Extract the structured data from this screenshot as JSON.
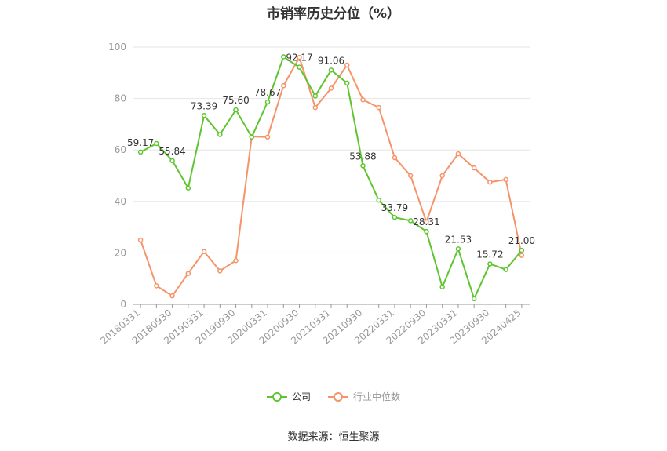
{
  "title": "市销率历史分位（%）",
  "source": "数据来源：恒生聚源",
  "colors": {
    "company": "#5ec52f",
    "industry": "#f59468",
    "grid": "#e6e6e6",
    "axis": "#999999"
  },
  "chart_data": {
    "type": "line",
    "title": "市销率历史分位（%）",
    "ylim": [
      0,
      100
    ],
    "yticks": [
      0,
      20,
      40,
      60,
      80,
      100
    ],
    "grid": true,
    "legend_position": "bottom",
    "x": [
      "20180331",
      "20180630",
      "20180930",
      "20181231",
      "20190331",
      "20190630",
      "20190930",
      "20191231",
      "20200331",
      "20200630",
      "20200930",
      "20201231",
      "20210331",
      "20210630",
      "20210930",
      "20211231",
      "20220331",
      "20220630",
      "20220930",
      "20221231",
      "20230331",
      "20230630",
      "20230930",
      "20231231",
      "20240425"
    ],
    "x_tick_labels": [
      "20180331",
      "20180930",
      "20190331",
      "20190930",
      "20200331",
      "20200930",
      "20210331",
      "20210930",
      "20220331",
      "20220930",
      "20230331",
      "20230930",
      "20240425"
    ],
    "series": [
      {
        "name": "公司",
        "color": "#5ec52f",
        "values": [
          59.17,
          62.5,
          55.84,
          45.2,
          73.39,
          66.0,
          75.6,
          65.0,
          78.67,
          96.2,
          92.17,
          81.0,
          91.06,
          86.0,
          53.88,
          40.5,
          33.79,
          32.5,
          28.31,
          6.8,
          21.53,
          2.2,
          15.72,
          13.5,
          21.0
        ]
      },
      {
        "name": "行业中位数",
        "color": "#f59468",
        "values": [
          25.0,
          7.2,
          3.3,
          12.0,
          20.5,
          13.0,
          17.0,
          65.2,
          65.0,
          85.0,
          96.0,
          76.5,
          84.0,
          93.0,
          79.5,
          76.5,
          57.0,
          50.0,
          32.0,
          50.0,
          58.5,
          53.0,
          47.5,
          48.5,
          19.0
        ]
      }
    ],
    "data_labels": [
      {
        "index": 0,
        "text": "59.17"
      },
      {
        "index": 2,
        "text": "55.84"
      },
      {
        "index": 4,
        "text": "73.39"
      },
      {
        "index": 6,
        "text": "75.60"
      },
      {
        "index": 8,
        "text": "78.67"
      },
      {
        "index": 10,
        "text": "92.17"
      },
      {
        "index": 12,
        "text": "91.06"
      },
      {
        "index": 14,
        "text": "53.88"
      },
      {
        "index": 16,
        "text": "33.79"
      },
      {
        "index": 18,
        "text": "28.31"
      },
      {
        "index": 20,
        "text": "21.53"
      },
      {
        "index": 22,
        "text": "15.72"
      },
      {
        "index": 24,
        "text": "21.00"
      }
    ]
  }
}
